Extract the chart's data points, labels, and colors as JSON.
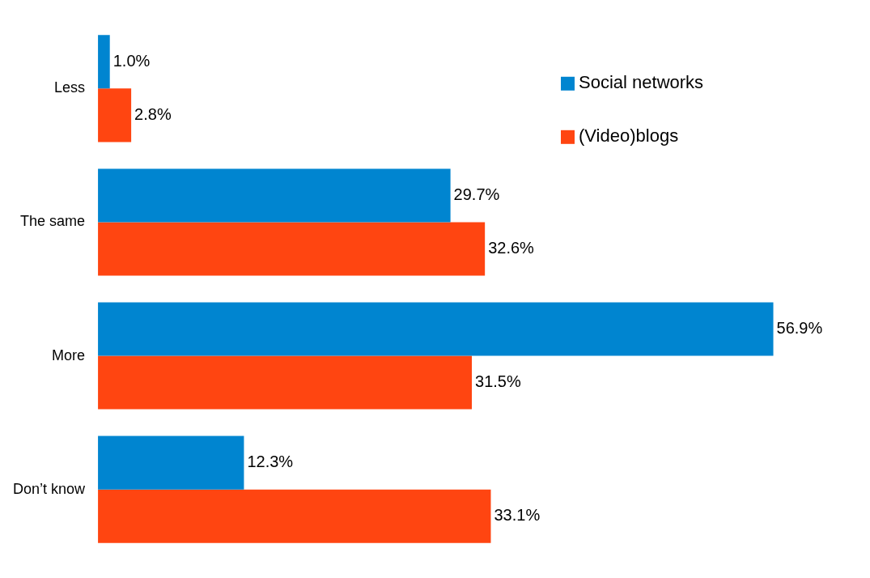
{
  "chart_data": {
    "type": "bar",
    "orientation": "horizontal",
    "categories": [
      "Less",
      "The same",
      "More",
      "Don’t know"
    ],
    "series": [
      {
        "name": "Social networks",
        "color": "#0085d0",
        "values": [
          1.0,
          29.7,
          56.9,
          12.3
        ],
        "value_labels": [
          "1.0%",
          "29.7%",
          "56.9%",
          "12.3%"
        ]
      },
      {
        "name": "(Video)blogs",
        "color": "#ff4511",
        "values": [
          2.8,
          32.6,
          31.5,
          33.1
        ],
        "value_labels": [
          "2.8%",
          "32.6%",
          "31.5%",
          "33.1%"
        ]
      }
    ],
    "legend": "top right"
  }
}
